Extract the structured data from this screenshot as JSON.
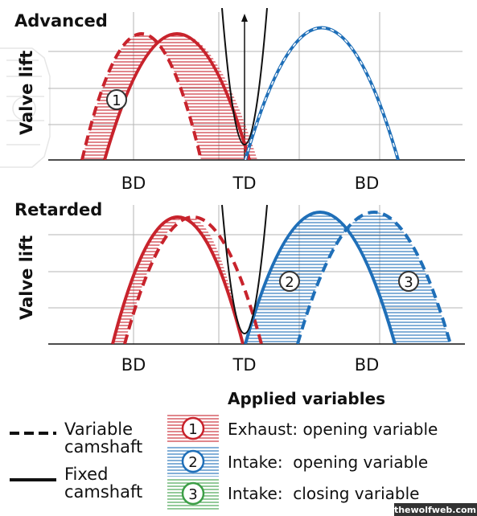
{
  "panels": {
    "advanced": {
      "title": "Advanced",
      "ylabel": "Valve lift",
      "marker": "1"
    },
    "retarded": {
      "title": "Retarded",
      "ylabel": "Valve lift",
      "marker_2": "2",
      "marker_3": "3"
    }
  },
  "axis": {
    "left_label": "BD",
    "center_label": "TD",
    "right_label": "BD"
  },
  "legend": {
    "title": "Applied variables",
    "variable_line_1": "Variable",
    "variable_line_2": "camshaft",
    "fixed_line_1": "Fixed",
    "fixed_line_2": "camshaft",
    "items": [
      {
        "number": "1",
        "label": "Exhaust: opening variable"
      },
      {
        "number": "2",
        "label": "Intake:  opening variable"
      },
      {
        "number": "3",
        "label": "Intake:  closing variable"
      }
    ]
  },
  "colors": {
    "exhaust": "#c8232c",
    "intake": "#1f6fb8",
    "closing": "#3d9e47",
    "tdc": "#111111"
  },
  "watermark": "thewolfweb.com"
}
